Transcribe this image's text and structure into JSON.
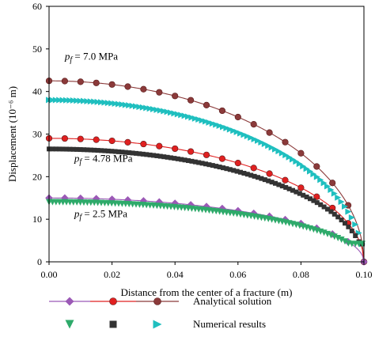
{
  "chart_data": {
    "type": "line",
    "title": "",
    "xlabel": "Distance from the center of a fracture (m)",
    "ylabel": "Displacement (10⁻⁶ m)",
    "xlim": [
      0,
      0.1
    ],
    "ylim": [
      0,
      60
    ],
    "xticks": [
      {
        "value": 0.0,
        "label": "0.00"
      },
      {
        "value": 0.02,
        "label": "0.02"
      },
      {
        "value": 0.04,
        "label": "0.04"
      },
      {
        "value": 0.06,
        "label": "0.06"
      },
      {
        "value": 0.08,
        "label": "0.08"
      },
      {
        "value": 0.1,
        "label": "0.10"
      }
    ],
    "yticks": [
      {
        "value": 0,
        "label": "0"
      },
      {
        "value": 10,
        "label": "10"
      },
      {
        "value": 20,
        "label": "20"
      },
      {
        "value": 30,
        "label": "30"
      },
      {
        "value": 40,
        "label": "40"
      },
      {
        "value": 50,
        "label": "50"
      },
      {
        "value": 60,
        "label": "60"
      }
    ],
    "grid": false,
    "legend_position": "bottom",
    "annotations": [
      {
        "label": "p_f = 7.0 MPa",
        "x": 0.005,
        "y": 47.5
      },
      {
        "label": "p_f = 4.78 MPa",
        "x": 0.008,
        "y": 23.5
      },
      {
        "label": "p_f = 2.5 MPa",
        "x": 0.008,
        "y": 10.5
      }
    ],
    "analytical": [
      {
        "pressure": "7.0 MPa",
        "color": "#8B3A3A",
        "marker": "circle",
        "peak": 42.5
      },
      {
        "pressure": "4.78 MPa",
        "color": "#E02020",
        "marker": "circle",
        "peak": 29.0
      },
      {
        "pressure": "2.5 MPa",
        "color": "#9B59B6",
        "marker": "diamond",
        "peak": 15.0
      }
    ],
    "numerical": [
      {
        "pressure": "7.0 MPa",
        "color": "#1FBFBF",
        "marker": "triangle-right",
        "peak": 38.0
      },
      {
        "pressure": "4.78 MPa",
        "color": "#333333",
        "marker": "square",
        "peak": 26.5
      },
      {
        "pressure": "2.5 MPa",
        "color": "#2EAA6A",
        "marker": "triangle-down",
        "peak": 14.0
      }
    ],
    "legend": [
      {
        "label": "Analytical solution"
      },
      {
        "label": "Numerical results"
      }
    ]
  }
}
